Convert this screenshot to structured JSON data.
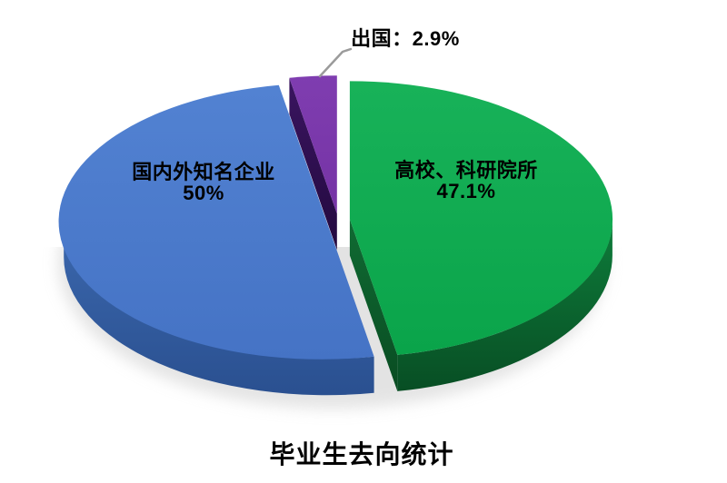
{
  "page": {
    "background": "#FFFFFF"
  },
  "title": "毕业生去向统计",
  "chart_data": {
    "type": "pie",
    "variant": "3d-exploded",
    "title": "毕业生去向统计",
    "start_angle_deg": 0,
    "direction": "clockwise",
    "legend_position": "none",
    "labels_on_slices": true,
    "shadow_color": "#D2D2D2",
    "leader_line_color": "#9B9B9B",
    "slices": [
      {
        "label": "高校、科研院所",
        "value": 47.1,
        "display": "47.1%",
        "color": "#0AA44A",
        "color_light": "#18B259",
        "side": "#0E7D3B",
        "side_dark": "#084E24",
        "face": "#106B33",
        "face_dark": "#094C22",
        "label_color": "#000000"
      },
      {
        "label": "国内外知名企业",
        "value": 50,
        "display": "50%",
        "color": "#4573C5",
        "color_light": "#5282D2",
        "side": "#3C68AE",
        "side_dark": "#2A5090",
        "face": "#2F5494",
        "face_dark": "#27497F",
        "label_color": "#000000"
      },
      {
        "label": "出国",
        "value": 2.9,
        "display": "2.9%",
        "callout": "出国：2.9%",
        "color": "#7533A5",
        "color_light": "#7F3DB0",
        "side": "#5B2585",
        "side_dark": "#42175F",
        "face": "#3A1560",
        "face_dark": "#23093F",
        "label_color": "#000000"
      }
    ]
  }
}
